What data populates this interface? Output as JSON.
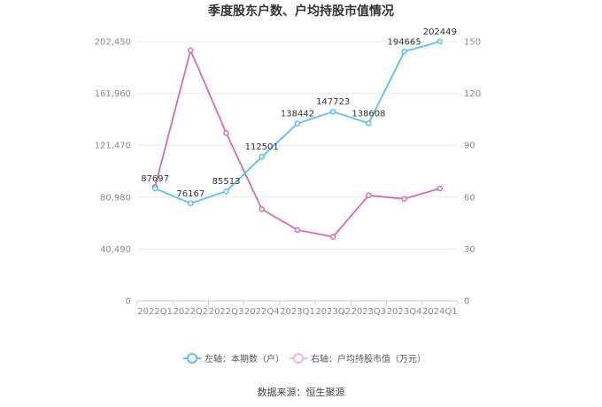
{
  "chart_data": {
    "type": "line",
    "title": "季度股东户数、户均持股市值情况",
    "categories": [
      "2022Q1",
      "2022Q2",
      "2022Q3",
      "2022Q4",
      "2023Q1",
      "2023Q2",
      "2023Q3",
      "2023Q4",
      "2024Q1"
    ],
    "left_axis": {
      "ticks": [
        "0",
        "40,490",
        "80,980",
        "121,470",
        "161,960",
        "202,450"
      ],
      "ylim": [
        0,
        202450
      ]
    },
    "right_axis": {
      "ticks": [
        "0",
        "30",
        "60",
        "90",
        "120",
        "150"
      ],
      "ylim": [
        0,
        150
      ]
    },
    "series": [
      {
        "name": "左轴：本期数（户）",
        "axis": "left",
        "color": "#5bc0eb",
        "values": [
          87697,
          76167,
          85513,
          112501,
          138442,
          147723,
          138608,
          194665,
          202449
        ],
        "labels": [
          "87697",
          "76167",
          "85513",
          "112501",
          "138442",
          "147723",
          "138608",
          "194665",
          "202449"
        ]
      },
      {
        "name": "右轴：户均持股市值（万元）",
        "axis": "right",
        "color": "#d46cb4",
        "values": [
          66,
          145,
          97,
          53,
          41,
          37,
          61,
          59,
          65
        ]
      }
    ],
    "grid": true,
    "legend_position": "bottom"
  },
  "source_text": "数据来源：恒生聚源"
}
